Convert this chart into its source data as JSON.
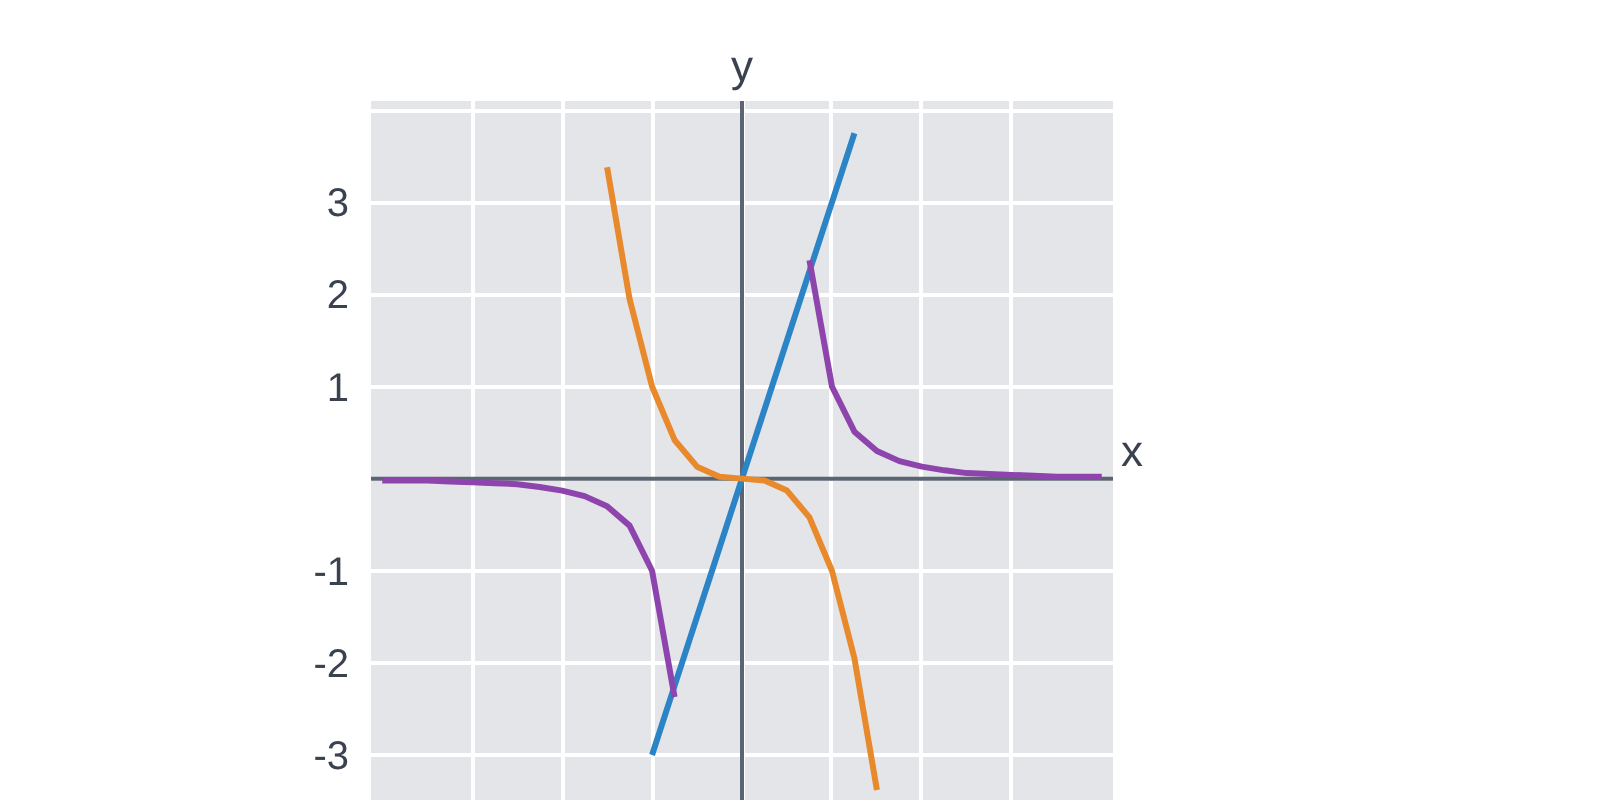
{
  "chart_data": {
    "type": "line",
    "xlabel": "x",
    "ylabel": "y",
    "categories": [
      null,
      null,
      null,
      null,
      null,
      null,
      null,
      null,
      null,
      null,
      null,
      null,
      null,
      null,
      null,
      null,
      null,
      null,
      null,
      null,
      null,
      null,
      null,
      null,
      null,
      null,
      null,
      null,
      null,
      null,
      null,
      null,
      null
    ],
    "ylim": [
      -3.5,
      4.1
    ],
    "yticks": [
      -3,
      -2,
      -1,
      {
        "value": 0,
        "label": null
      },
      1,
      2,
      3,
      {
        "value": 4,
        "label": null
      }
    ],
    "grid": true,
    "line_style": "solid",
    "series": [
      {
        "color": "#2a84c6",
        "values": [
          null,
          null,
          null,
          null,
          null,
          null,
          null,
          null,
          null,
          null,
          null,
          null,
          -3,
          -2.25,
          -1.5,
          -0.75,
          0,
          0.75,
          1.5,
          2.25,
          3,
          3.75,
          null,
          null,
          null,
          null,
          null,
          null,
          null,
          null,
          null,
          null,
          null
        ]
      },
      {
        "color": "#e8892c",
        "values": [
          null,
          null,
          null,
          null,
          null,
          null,
          null,
          null,
          null,
          null,
          3.38,
          1.95,
          1,
          0.42,
          0.13,
          0.02,
          0,
          -0.02,
          -0.13,
          -0.42,
          -1,
          -1.95,
          -3.38,
          null,
          null,
          null,
          null,
          null,
          null,
          null,
          null,
          null,
          null
        ]
      },
      {
        "color": "#8e44ad",
        "values": [
          -0.02,
          -0.02,
          -0.02,
          -0.03,
          -0.04,
          -0.05,
          -0.06,
          -0.09,
          -0.13,
          -0.19,
          -0.3,
          -0.51,
          -1,
          -2.37,
          null,
          null,
          null,
          null,
          null,
          2.37,
          1,
          0.51,
          0.3,
          0.19,
          0.13,
          0.09,
          0.06,
          0.05,
          0.04,
          0.03,
          0.02,
          0.02,
          0.02
        ]
      }
    ]
  }
}
